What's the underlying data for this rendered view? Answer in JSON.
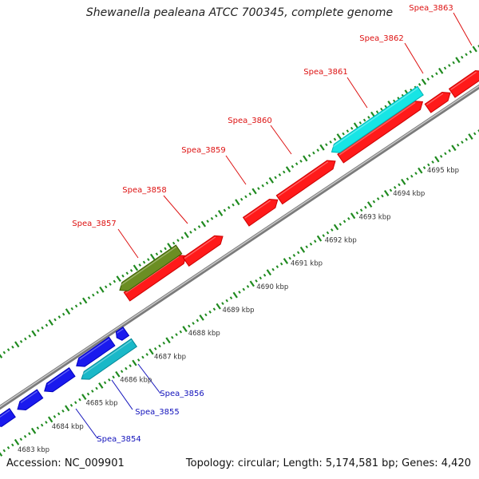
{
  "title": "Shewanella pealeana ATCC 700345, complete genome",
  "footer": {
    "accession": "Accession: NC_009901",
    "stats": "Topology: circular; Length: 5,174,581 bp; Genes: 4,420"
  },
  "colors": {
    "backbone": "#999999",
    "tick_dots": "#1f8a1f",
    "forward_gene": "#ff1a1a",
    "forward_gene_alt": "#6b8e23",
    "forward_highlight": "#17e5e5",
    "reverse_gene": "#1a1aee",
    "reverse_highlight": "#1ab8c8",
    "forward_label": "#dd1111",
    "reverse_label": "#1111bb",
    "kbp_label": "#333333"
  },
  "kbp_ticks": [
    "4683 kbp",
    "4684 kbp",
    "4685 kbp",
    "4686 kbp",
    "4687 kbp",
    "4688 kbp",
    "4689 kbp",
    "4690 kbp",
    "4691 kbp",
    "4692 kbp",
    "4693 kbp",
    "4694 kbp",
    "4695 kbp"
  ],
  "forward_genes": [
    {
      "label": "Spea_3857",
      "color": "forward_gene_alt"
    },
    {
      "label": "Spea_3858",
      "color": "forward_gene"
    },
    {
      "label": "Spea_3859",
      "color": "forward_gene"
    },
    {
      "label": "Spea_3860",
      "color": "forward_gene"
    },
    {
      "label": "Spea_3861",
      "color": "forward_highlight"
    },
    {
      "label": "Spea_3862",
      "color": "forward_gene"
    },
    {
      "label": "Spea_3863",
      "color": "forward_gene"
    }
  ],
  "reverse_genes": [
    {
      "label": "Spea_3854",
      "color": "reverse_gene"
    },
    {
      "label": "Spea_3855",
      "color": "reverse_highlight"
    },
    {
      "label": "Spea_3856",
      "color": "reverse_gene"
    }
  ]
}
